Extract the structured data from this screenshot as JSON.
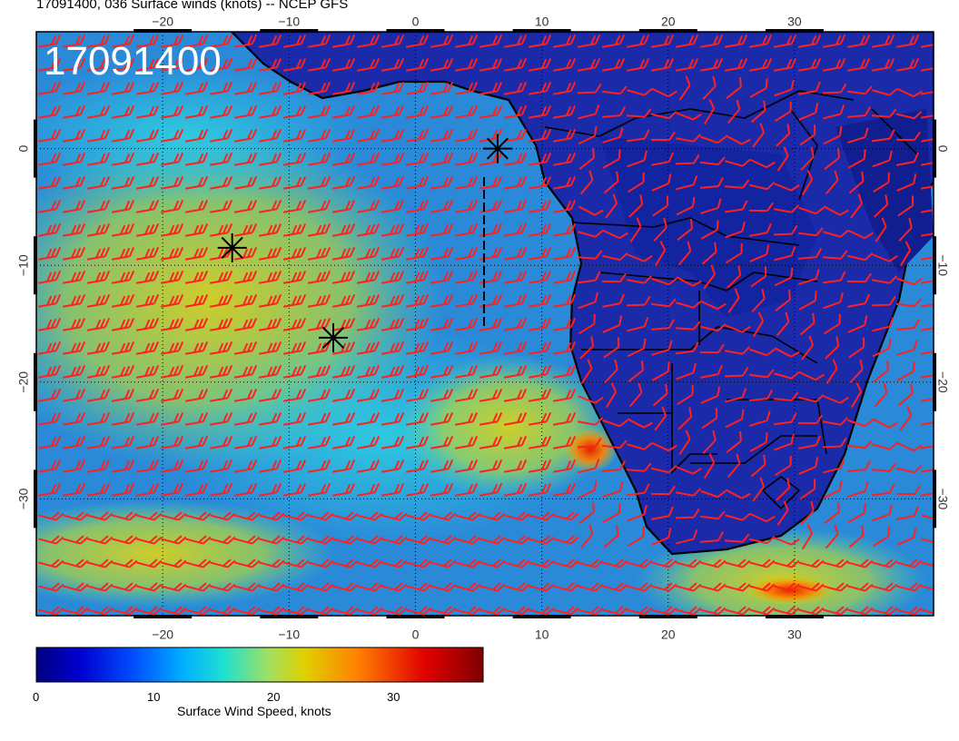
{
  "title": "17091400, 036 Surface winds (knots) -- NCEP GFS",
  "stamp": "17091400",
  "map": {
    "lon_range": [
      -30,
      41
    ],
    "lat_range": [
      -40,
      10
    ],
    "lon_ticks": [
      -20,
      -10,
      0,
      10,
      20,
      30
    ],
    "lat_ticks": [
      0,
      -10,
      -20,
      -30
    ],
    "top_lon_labels": [
      "−20",
      "−10",
      "0",
      "10",
      "20",
      "30"
    ],
    "bottom_lon_labels": [
      "−20",
      "−10",
      "0",
      "10",
      "20",
      "30"
    ],
    "left_lat_labels": [
      "0",
      "−10",
      "−20",
      "−30"
    ],
    "right_lat_labels": [
      "0",
      "−10",
      "−20",
      "−30"
    ],
    "markers": [
      {
        "label": "storm-marker",
        "lon": -14.5,
        "lat": -8.5
      },
      {
        "label": "storm-marker",
        "lon": -6.5,
        "lat": -16.2
      },
      {
        "label": "storm-marker",
        "lon": 6.5,
        "lat": 0.0
      }
    ],
    "barb_color": "#ff2020"
  },
  "colorbar": {
    "label": "Surface Wind Speed, knots",
    "ticks": [
      "0",
      "10",
      "20",
      "30"
    ],
    "range": [
      0,
      37
    ],
    "colors": [
      "#00007f",
      "#0000d0",
      "#0050ff",
      "#00b0ff",
      "#20e0d0",
      "#a0e060",
      "#e0d000",
      "#ff8000",
      "#e00000",
      "#7f0000"
    ]
  },
  "chart_data": {
    "type": "heatmap",
    "title": "17091400, 036 Surface winds (knots) -- NCEP GFS",
    "xlabel": "",
    "ylabel": "",
    "xlim": [
      -30,
      41
    ],
    "ylim": [
      -40,
      10
    ],
    "colorbar_label": "Surface Wind Speed, knots",
    "colorbar_range": [
      0,
      37
    ]
  }
}
